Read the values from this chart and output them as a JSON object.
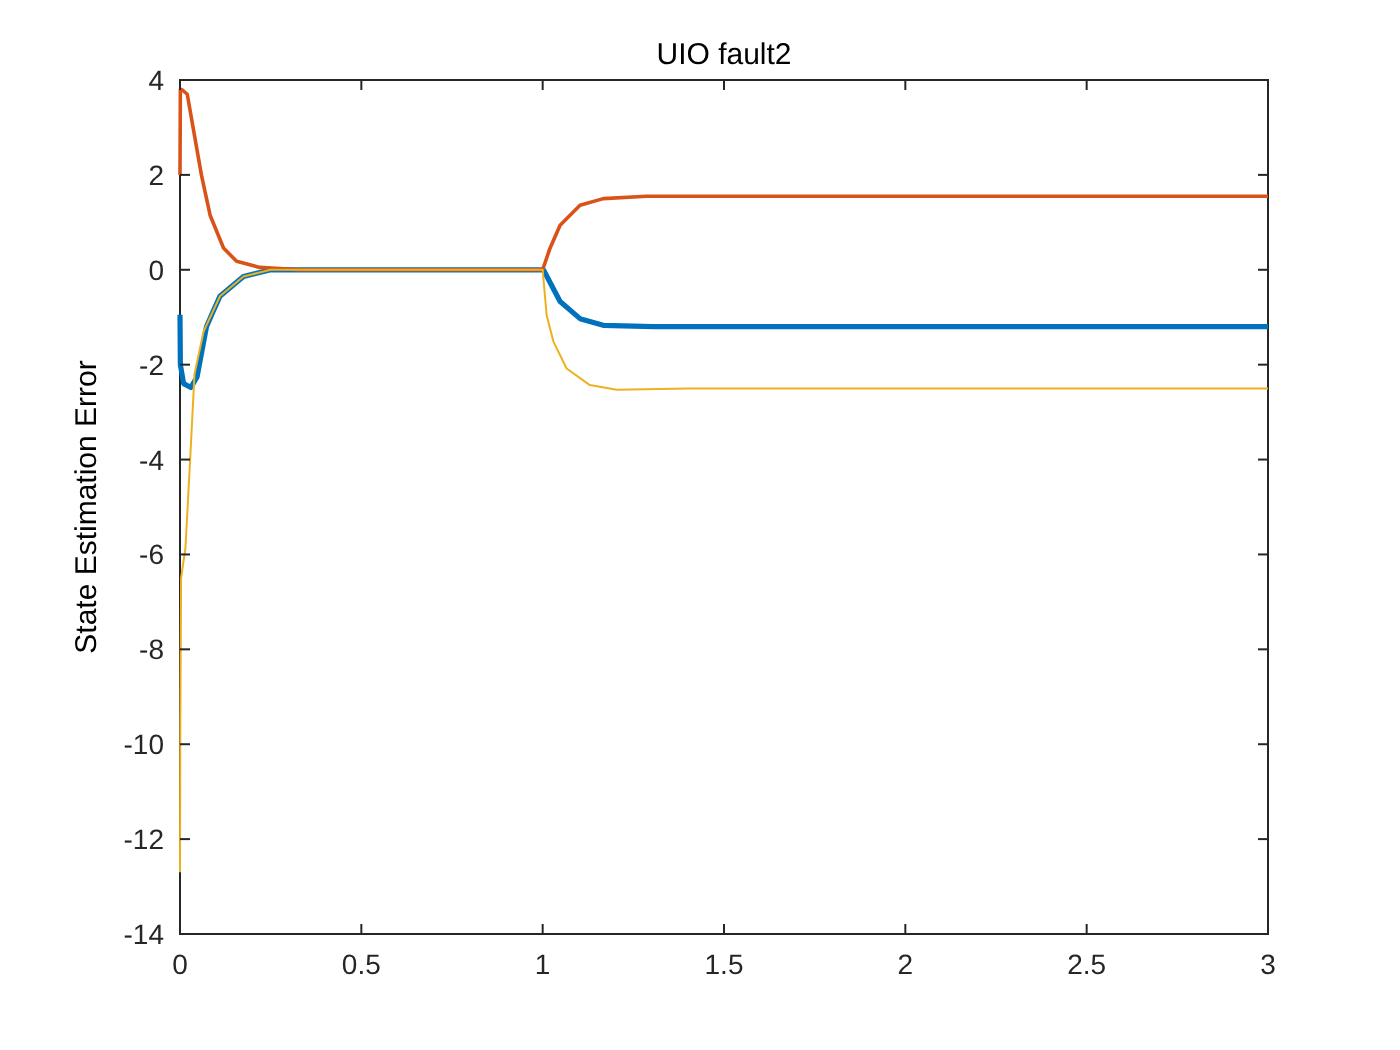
{
  "chart_data": {
    "type": "line",
    "title": "UIO fault2",
    "ylabel": "State Estimation Error",
    "xlim": [
      0,
      3
    ],
    "ylim": [
      -14,
      4
    ],
    "xticks": [
      0,
      0.5,
      1,
      1.5,
      2,
      2.5,
      3
    ],
    "yticks": [
      -14,
      -12,
      -10,
      -8,
      -6,
      -4,
      -2,
      0,
      2,
      4
    ],
    "grid": false,
    "series": [
      {
        "color": "#0072bd",
        "x": [
          0,
          0.001,
          0.01,
          0.03,
          0.047,
          0.073,
          0.09,
          0.11,
          0.175,
          0.25,
          0.4,
          1,
          1.002,
          1.048,
          1.103,
          1.167,
          1.305,
          3
        ],
        "values": [
          -0.95,
          -2,
          -2.4,
          -2.48,
          -2.26,
          -1.2,
          -0.9,
          -0.56,
          -0.14,
          0,
          0,
          0,
          0,
          -0.67,
          -1.03,
          -1.17,
          -1.2,
          -1.2
        ]
      },
      {
        "color": "#d95319",
        "x": [
          0,
          0.001,
          0.005,
          0.02,
          0.059,
          0.083,
          0.12,
          0.156,
          0.22,
          0.33,
          1,
          1.02,
          1.048,
          1.103,
          1.167,
          1.287,
          3
        ],
        "values": [
          2,
          3.8,
          3.8,
          3.7,
          2,
          1.15,
          0.46,
          0.18,
          0.05,
          0,
          0,
          0.45,
          0.94,
          1.36,
          1.5,
          1.55,
          1.55
        ]
      },
      {
        "color": "#edb120",
        "x": [
          0,
          0.001,
          0.003,
          0.015,
          0.028,
          0.04,
          0.065,
          0.11,
          0.175,
          0.25,
          1,
          1.011,
          1.03,
          1.066,
          1.13,
          1.204,
          1.4,
          3
        ],
        "values": [
          -12.7,
          -9.5,
          -6.5,
          -5.86,
          -4,
          -2.2,
          -1.3,
          -0.56,
          -0.14,
          0,
          0,
          -0.96,
          -1.52,
          -2.08,
          -2.43,
          -2.53,
          -2.5,
          -2.5
        ]
      }
    ]
  }
}
